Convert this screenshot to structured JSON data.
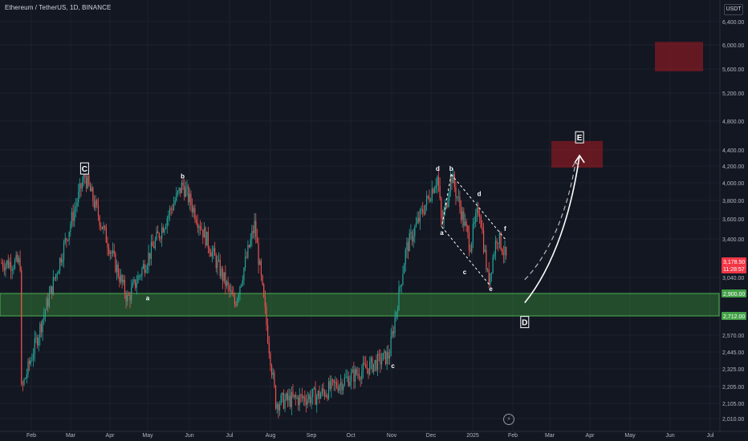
{
  "header": {
    "symbol_title": "Ethereum / TetherUS, 1D, BINANCE",
    "currency": "USDT"
  },
  "icons": {
    "replay": "lightning-icon"
  },
  "colors": {
    "background": "#131722",
    "up": "#26a69a",
    "down": "#ef5350",
    "zone_green": "#2e7d32",
    "zone_red": "#801922",
    "axis_text": "#b2b5be",
    "current_price": "#f23645",
    "support_label": "#43a047"
  },
  "chart_data": {
    "type": "candlestick",
    "x_ticks": [
      "Feb",
      "Mar",
      "Apr",
      "May",
      "Jun",
      "Jul",
      "Aug",
      "Sep",
      "Oct",
      "Nov",
      "Dec",
      "2025",
      "Feb",
      "Mar",
      "Apr",
      "May",
      "Jun",
      "Jul"
    ],
    "y_ticks": [
      "6,400.00",
      "6,000.00",
      "5,600.00",
      "5,200.00",
      "4,800.00",
      "4,400.00",
      "4,200.00",
      "4,000.00",
      "3,800.00",
      "3,600.00",
      "3,400.00",
      "3,040.00",
      "2,570.00",
      "2,445.00",
      "2,325.00",
      "2,205.00",
      "2,105.00",
      "2,010.00"
    ],
    "ylim": [
      2010,
      6400
    ],
    "log_scale": true,
    "current_price": {
      "price": "3,178.50",
      "countdown": "11:28:57"
    },
    "price_labels": [
      {
        "text": "2,900.00",
        "kind": "support-top"
      },
      {
        "text": "2,712.00",
        "kind": "support-bottom"
      }
    ],
    "support_zone": [
      2712,
      2900
    ],
    "target_zones": [
      [
        4180,
        4520
      ],
      [
        5560,
        6050
      ]
    ],
    "pivots": [
      {
        "x": "2024-01-23",
        "price": 2170
      },
      {
        "x": "2024-03-12",
        "price": 4090
      },
      {
        "x": "2024-04-15",
        "price": 2850
      },
      {
        "x": "2024-05-27",
        "price": 3980
      },
      {
        "x": "2024-07-05",
        "price": 2810
      },
      {
        "x": "2024-07-20",
        "price": 3540
      },
      {
        "x": "2024-08-05",
        "price": 2110
      },
      {
        "x": "2024-09-06",
        "price": 2150
      },
      {
        "x": "2024-10-30",
        "price": 2420
      },
      {
        "x": "2024-11-12",
        "price": 3300
      },
      {
        "x": "2024-12-06",
        "price": 4080
      },
      {
        "x": "2024-12-09",
        "price": 3520
      },
      {
        "x": "2024-12-16",
        "price": 4100
      },
      {
        "x": "2024-12-30",
        "price": 3340
      },
      {
        "x": "2025-01-06",
        "price": 3740
      },
      {
        "x": "2025-01-13",
        "price": 3000
      },
      {
        "x": "2025-01-20",
        "price": 3450
      },
      {
        "x": "2025-01-28",
        "price": 3170
      }
    ],
    "wave_labels": [
      {
        "text": "C",
        "x": "2024-03-12",
        "price": 4160,
        "boxed": true
      },
      {
        "text": "b",
        "x": "2024-05-27",
        "price": 4050,
        "boxed": false
      },
      {
        "text": "a",
        "x": "2024-05-01",
        "price": 2840,
        "boxed": false
      },
      {
        "text": "c",
        "x": "2024-11-02",
        "price": 2330,
        "boxed": false
      },
      {
        "text": "d",
        "x": "2024-12-06",
        "price": 4140,
        "boxed": false
      },
      {
        "text": "b",
        "x": "2024-12-16",
        "price": 4140,
        "boxed": false
      },
      {
        "text": "a",
        "x": "2024-12-09",
        "price": 3440,
        "boxed": false
      },
      {
        "text": "d",
        "x": "2025-01-06",
        "price": 3850,
        "boxed": false
      },
      {
        "text": "c",
        "x": "2024-12-26",
        "price": 3070,
        "boxed": false
      },
      {
        "text": "e",
        "x": "2025-01-15",
        "price": 2920,
        "boxed": false
      },
      {
        "text": "f",
        "x": "2025-01-26",
        "price": 3480,
        "boxed": false
      },
      {
        "text": "E",
        "x": "2025-03-24",
        "price": 4560,
        "boxed": true
      },
      {
        "text": "D",
        "x": "2025-02-10",
        "price": 2660,
        "boxed": true
      }
    ],
    "triangle": {
      "upper": [
        [
          "2024-12-16",
          4100
        ],
        [
          "2025-01-26",
          3400
        ]
      ],
      "lower": [
        [
          "2024-12-09",
          3520
        ],
        [
          "2025-01-15",
          2960
        ]
      ]
    },
    "projection": {
      "solid_path": [
        [
          "2025-02-10",
          2820
        ],
        [
          "2025-03-05",
          3150
        ],
        [
          "2025-03-18",
          3700
        ],
        [
          "2025-03-24",
          4330
        ]
      ],
      "dashed_path": [
        [
          "2025-02-10",
          3020
        ],
        [
          "2025-03-01",
          3250
        ],
        [
          "2025-03-15",
          3700
        ],
        [
          "2025-03-21",
          4250
        ]
      ]
    }
  }
}
